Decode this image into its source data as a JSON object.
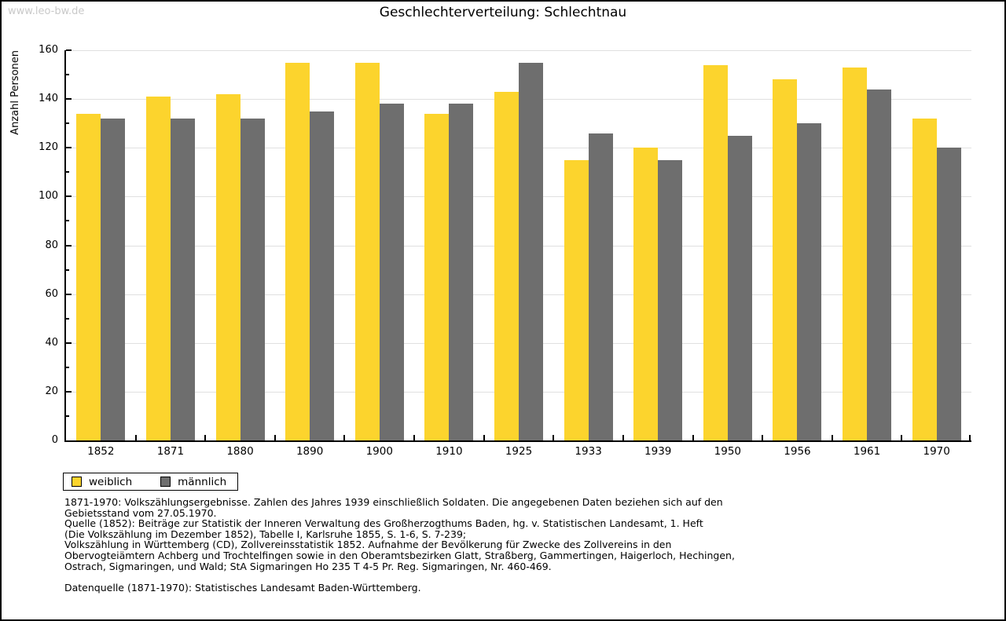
{
  "watermark": "www.leo-bw.de",
  "title": "Geschlechterverteilung: Schlechtnau",
  "chart_data": {
    "type": "bar",
    "title": "Geschlechterverteilung: Schlechtnau",
    "xlabel": "",
    "ylabel": "Anzahl Personen",
    "ylim": [
      0,
      160
    ],
    "ytick_step": 20,
    "ytick_minor_step": 10,
    "grid": true,
    "legend_position": "bottom-left",
    "categories": [
      "1852",
      "1871",
      "1880",
      "1890",
      "1900",
      "1910",
      "1925",
      "1933",
      "1939",
      "1950",
      "1956",
      "1961",
      "1970"
    ],
    "series": [
      {
        "name": "weiblich",
        "color": "#fcd42d",
        "values": [
          134,
          141,
          142,
          155,
          155,
          134,
          143,
          115,
          120,
          154,
          148,
          153,
          132
        ]
      },
      {
        "name": "männlich",
        "color": "#6e6e6e",
        "values": [
          132,
          132,
          132,
          135,
          138,
          138,
          155,
          126,
          115,
          125,
          130,
          144,
          120
        ]
      }
    ]
  },
  "footer": {
    "notes": [
      "1871-1970: Volkszählungsergebnisse. Zahlen des Jahres 1939 einschließlich Soldaten. Die angegebenen Daten beziehen sich auf den",
      "Gebietsstand vom 27.05.1970.",
      "Quelle (1852): Beiträge zur Statistik der Inneren Verwaltung des Großherzogthums Baden, hg. v. Statistischen Landesamt, 1. Heft",
      "(Die Volkszählung im Dezember 1852), Tabelle I, Karlsruhe 1855, S. 1-6, S. 7-239;",
      "Volkszählung in Württemberg (CD), Zollvereinsstatistik 1852. Aufnahme der Bevölkerung für Zwecke des Zollvereins in den",
      "Obervogteiämtern Achberg und Trochtelfingen sowie in den Oberamtsbezirken Glatt, Straßberg, Gammertingen, Haigerloch, Hechingen,",
      "Ostrach, Sigmaringen, und Wald; StA Sigmaringen Ho 235 T 4-5 Pr. Reg. Sigmaringen, Nr. 460-469."
    ],
    "datasource": "Datenquelle (1871-1970): Statistisches Landesamt Baden-Württemberg."
  },
  "colors": {
    "bar_weiblich": "#fcd42d",
    "bar_maennlich": "#6e6e6e",
    "gridline": "#e0e0e0",
    "axis": "#000000",
    "watermark": "#c9c9c9"
  }
}
